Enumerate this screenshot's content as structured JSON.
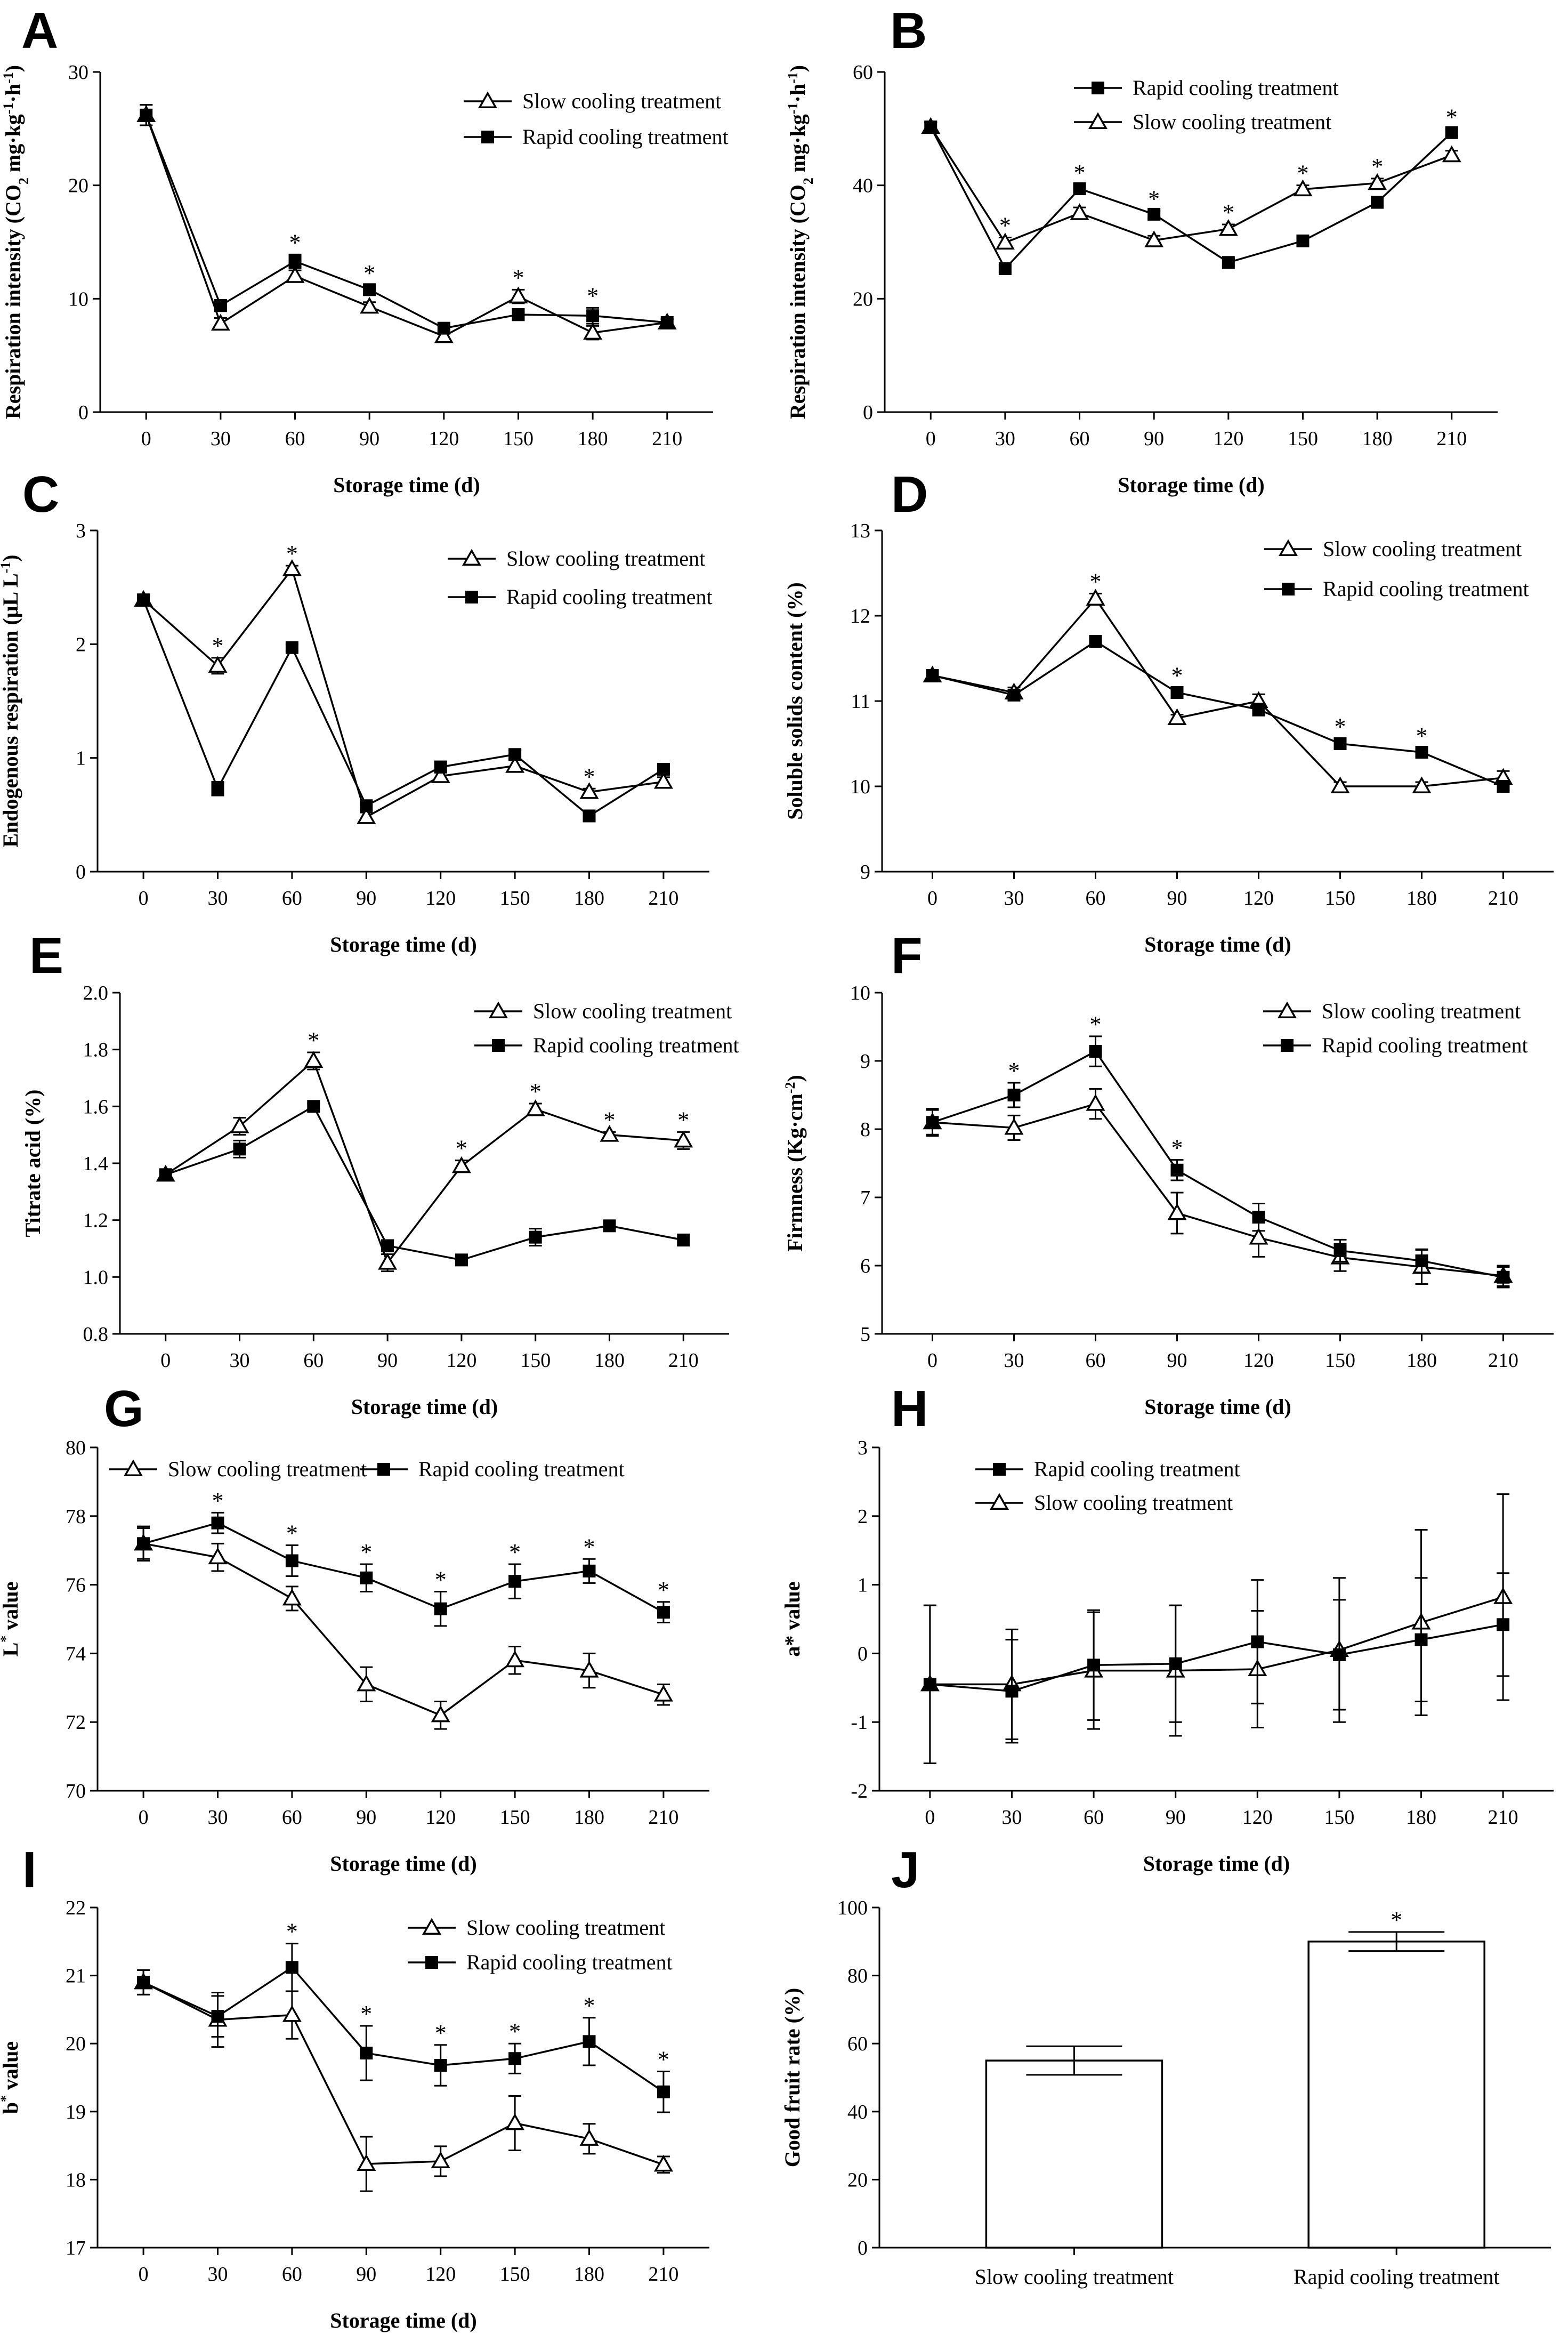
{
  "figure": {
    "panel_letters": [
      "A",
      "B",
      "C",
      "D",
      "E",
      "F",
      "G",
      "H",
      "I",
      "J"
    ]
  },
  "colors": {
    "axis": "#000000",
    "background": "#ffffff"
  },
  "markers": {
    "Slow cooling treatment": "open-triangle",
    "Rapid cooling treatment": "filled-square"
  },
  "chart_data": [
    {
      "id": "A",
      "type": "line",
      "letter": "A",
      "xlabel": "Storage time (d)",
      "ylabel": [
        {
          "t": "Respiration intensity (CO"
        },
        {
          "t": "2",
          "s": "sub"
        },
        {
          "t": " mg·kg"
        },
        {
          "t": "-1",
          "s": "sup"
        },
        {
          "t": "·h"
        },
        {
          "t": "-1",
          "s": "sup"
        },
        {
          "t": ")"
        }
      ],
      "x": [
        0,
        30,
        60,
        90,
        120,
        150,
        180,
        210
      ],
      "xticks": [
        "0",
        "30",
        "60",
        "90",
        "120",
        "150",
        "180",
        "210"
      ],
      "ylim": [
        0,
        30
      ],
      "yticks": [
        0,
        10,
        20,
        30
      ],
      "legend_order": [
        "Slow cooling treatment",
        "Rapid cooling treatment"
      ],
      "series": [
        {
          "name": "Slow cooling treatment",
          "values": [
            26.2,
            7.8,
            12.0,
            9.3,
            6.7,
            10.2,
            7.0,
            7.9
          ],
          "errors": [
            0.9,
            0.5,
            0.5,
            0.4,
            0.4,
            0.6,
            0.6,
            0.3
          ]
        },
        {
          "name": "Rapid cooling treatment",
          "values": [
            26.2,
            9.4,
            13.3,
            10.8,
            7.4,
            8.6,
            8.5,
            7.9
          ],
          "errors": [
            0.9,
            0.5,
            0.6,
            0.4,
            0.4,
            0.5,
            0.7,
            0.3
          ]
        }
      ],
      "significance_x": [
        60,
        90,
        150,
        180
      ],
      "significance_label": "*"
    },
    {
      "id": "B",
      "type": "line",
      "letter": "B",
      "xlabel": "Storage time (d)",
      "ylabel": [
        {
          "t": "Respiration intensity (CO"
        },
        {
          "t": "2",
          "s": "sub"
        },
        {
          "t": " mg·kg"
        },
        {
          "t": "-1",
          "s": "sup"
        },
        {
          "t": "·h"
        },
        {
          "t": "-1",
          "s": "sup"
        },
        {
          "t": ")"
        }
      ],
      "x": [
        0,
        30,
        60,
        90,
        120,
        150,
        180,
        210
      ],
      "xticks": [
        "0",
        "30",
        "60",
        "90",
        "120",
        "150",
        "180",
        "210"
      ],
      "ylim": [
        0,
        60
      ],
      "yticks": [
        0,
        20,
        40,
        60
      ],
      "legend_order": [
        "Rapid cooling treatment",
        "Slow cooling treatment"
      ],
      "series": [
        {
          "name": "Slow cooling treatment",
          "values": [
            50.3,
            29.9,
            35.1,
            30.3,
            32.3,
            39.3,
            40.4,
            45.3
          ],
          "errors": [
            0.8,
            0.9,
            1.0,
            0.8,
            0.8,
            0.7,
            0.8,
            0.8
          ]
        },
        {
          "name": "Rapid cooling treatment",
          "values": [
            50.3,
            25.3,
            39.4,
            34.9,
            26.4,
            30.2,
            37.0,
            49.3
          ],
          "errors": [
            0.8,
            0.6,
            0.7,
            0.6,
            0.6,
            0.6,
            0.6,
            0.6
          ]
        }
      ],
      "significance_x": [
        30,
        60,
        90,
        120,
        150,
        180,
        210
      ],
      "significance_label": "*"
    },
    {
      "id": "C",
      "type": "line",
      "letter": "C",
      "xlabel": "Storage time (d)",
      "ylabel": [
        {
          "t": "Endogenous respiration (μL L"
        },
        {
          "t": "-1",
          "s": "sup"
        },
        {
          "t": ")"
        }
      ],
      "x": [
        0,
        30,
        60,
        90,
        120,
        150,
        180,
        210
      ],
      "xticks": [
        "0",
        "30",
        "60",
        "90",
        "120",
        "150",
        "180",
        "210"
      ],
      "ylim": [
        0,
        3
      ],
      "yticks": [
        0,
        1,
        2,
        3
      ],
      "legend_order": [
        "Slow cooling treatment",
        "Rapid cooling treatment"
      ],
      "series": [
        {
          "name": "Slow cooling treatment",
          "values": [
            2.39,
            1.81,
            2.66,
            0.48,
            0.84,
            0.93,
            0.7,
            0.79
          ],
          "errors": [
            0.04,
            0.07,
            0.03,
            0.04,
            0.04,
            0.05,
            0.03,
            0.04
          ]
        },
        {
          "name": "Rapid cooling treatment",
          "values": [
            2.39,
            0.73,
            1.97,
            0.58,
            0.92,
            1.03,
            0.49,
            0.9
          ],
          "errors": [
            0.04,
            0.06,
            0.03,
            0.04,
            0.05,
            0.04,
            0.04,
            0.03
          ]
        }
      ],
      "significance_x": [
        30,
        60,
        180
      ],
      "significance_label": "*"
    },
    {
      "id": "D",
      "type": "line",
      "letter": "D",
      "xlabel": "Storage time (d)",
      "ylabel": [
        {
          "t": "Soluble solids content (%)"
        }
      ],
      "x": [
        0,
        30,
        60,
        90,
        120,
        150,
        180,
        210
      ],
      "xticks": [
        "0",
        "30",
        "60",
        "90",
        "120",
        "150",
        "180",
        "210"
      ],
      "ylim": [
        9,
        13
      ],
      "yticks": [
        9,
        10,
        11,
        12,
        13
      ],
      "legend_order": [
        "Slow cooling treatment",
        "Rapid cooling treatment"
      ],
      "series": [
        {
          "name": "Slow cooling treatment",
          "values": [
            11.3,
            11.1,
            12.2,
            10.8,
            11.0,
            10.0,
            10.0,
            10.1
          ],
          "errors": [
            0.03,
            0.06,
            0.06,
            0.04,
            0.08,
            0.05,
            0.05,
            0.08
          ]
        },
        {
          "name": "Rapid cooling treatment",
          "values": [
            11.3,
            11.07,
            11.7,
            11.1,
            10.9,
            10.5,
            10.4,
            10.0
          ],
          "errors": [
            0.03,
            0.05,
            0.03,
            0.06,
            0.07,
            0.06,
            0.05,
            0.05
          ]
        }
      ],
      "significance_x": [
        60,
        90,
        150,
        180
      ],
      "significance_label": "*"
    },
    {
      "id": "E",
      "type": "line",
      "letter": "E",
      "xlabel": "Storage time (d)",
      "ylabel": [
        {
          "t": "Titrate acid (%)"
        }
      ],
      "x": [
        0,
        30,
        60,
        90,
        120,
        150,
        180,
        210
      ],
      "xticks": [
        "0",
        "30",
        "60",
        "90",
        "120",
        "150",
        "180",
        "210"
      ],
      "ylim": [
        0.8,
        2.0
      ],
      "yticks": [
        0.8,
        1.0,
        1.2,
        1.4,
        1.6,
        1.8,
        2.0
      ],
      "ytick_decimals": 1,
      "legend_order": [
        "Slow cooling treatment",
        "Rapid cooling treatment"
      ],
      "series": [
        {
          "name": "Slow cooling treatment",
          "values": [
            1.36,
            1.53,
            1.76,
            1.05,
            1.39,
            1.59,
            1.5,
            1.48
          ],
          "errors": [
            0.01,
            0.03,
            0.03,
            0.03,
            0.02,
            0.02,
            0.01,
            0.03
          ]
        },
        {
          "name": "Rapid cooling treatment",
          "values": [
            1.36,
            1.45,
            1.6,
            1.11,
            1.06,
            1.14,
            1.18,
            1.13
          ],
          "errors": [
            0.01,
            0.03,
            0.01,
            0.02,
            0.01,
            0.03,
            0.01,
            0.02
          ]
        }
      ],
      "significance_x": [
        60,
        120,
        150,
        180,
        210
      ],
      "significance_label": "*"
    },
    {
      "id": "F",
      "type": "line",
      "letter": "F",
      "xlabel": "Storage time (d)",
      "ylabel": [
        {
          "t": "Firmness (Kg·cm"
        },
        {
          "t": "-2",
          "s": "sup"
        },
        {
          "t": ")"
        }
      ],
      "x": [
        0,
        30,
        60,
        90,
        120,
        150,
        180,
        210
      ],
      "xticks": [
        "0",
        "30",
        "60",
        "90",
        "120",
        "150",
        "180",
        "210"
      ],
      "ylim": [
        5,
        10
      ],
      "yticks": [
        5,
        6,
        7,
        8,
        9,
        10
      ],
      "legend_order": [
        "Slow cooling treatment",
        "Rapid cooling treatment"
      ],
      "series": [
        {
          "name": "Slow cooling treatment",
          "values": [
            8.1,
            8.02,
            8.37,
            6.77,
            6.41,
            6.12,
            5.98,
            5.85
          ],
          "errors": [
            0.18,
            0.18,
            0.22,
            0.3,
            0.28,
            0.2,
            0.25,
            0.15
          ]
        },
        {
          "name": "Rapid cooling treatment",
          "values": [
            8.1,
            8.5,
            9.14,
            7.4,
            6.71,
            6.22,
            6.07,
            5.83
          ],
          "errors": [
            0.2,
            0.18,
            0.22,
            0.15,
            0.2,
            0.16,
            0.17,
            0.15
          ]
        }
      ],
      "significance_x": [
        30,
        60,
        90
      ],
      "significance_label": "*"
    },
    {
      "id": "G",
      "type": "line",
      "letter": "G",
      "xlabel": "Storage time (d)",
      "ylabel": [
        {
          "t": "L"
        },
        {
          "t": "*",
          "s": "sup"
        },
        {
          "t": " value"
        }
      ],
      "x": [
        0,
        30,
        60,
        90,
        120,
        150,
        180,
        210
      ],
      "xticks": [
        "0",
        "30",
        "60",
        "90",
        "120",
        "150",
        "180",
        "210"
      ],
      "ylim": [
        70,
        80
      ],
      "yticks": [
        70,
        72,
        74,
        76,
        78,
        80
      ],
      "legend_order": [
        "Slow cooling treatment",
        "Rapid cooling treatment"
      ],
      "legend_layout": "row",
      "series": [
        {
          "name": "Slow cooling treatment",
          "values": [
            77.2,
            76.8,
            75.6,
            73.1,
            72.2,
            73.8,
            73.5,
            72.8
          ],
          "errors": [
            0.5,
            0.4,
            0.35,
            0.5,
            0.4,
            0.4,
            0.5,
            0.3
          ]
        },
        {
          "name": "Rapid cooling treatment",
          "values": [
            77.2,
            77.8,
            76.7,
            76.2,
            75.3,
            76.1,
            76.4,
            75.2
          ],
          "errors": [
            0.45,
            0.3,
            0.45,
            0.4,
            0.5,
            0.5,
            0.35,
            0.3
          ]
        }
      ],
      "significance_x": [
        30,
        60,
        90,
        120,
        150,
        180,
        210
      ],
      "significance_label": "*"
    },
    {
      "id": "H",
      "type": "line",
      "letter": "H",
      "xlabel": "Storage time (d)",
      "ylabel": [
        {
          "t": "a* value"
        }
      ],
      "x": [
        0,
        30,
        60,
        90,
        120,
        150,
        180,
        210
      ],
      "xticks": [
        "0",
        "30",
        "60",
        "90",
        "120",
        "150",
        "180",
        "210"
      ],
      "ylim": [
        -2,
        3
      ],
      "yticks": [
        -2,
        -1,
        0,
        1,
        2,
        3
      ],
      "legend_order": [
        "Rapid cooling treatment",
        "Slow cooling treatment"
      ],
      "series": [
        {
          "name": "Slow cooling treatment",
          "values": [
            -0.45,
            -0.45,
            -0.25,
            -0.25,
            -0.23,
            0.05,
            0.45,
            0.82
          ],
          "errors": [
            1.15,
            0.8,
            0.85,
            0.95,
            0.85,
            1.05,
            1.35,
            1.5
          ]
        },
        {
          "name": "Rapid cooling treatment",
          "values": [
            -0.45,
            -0.55,
            -0.17,
            -0.15,
            0.17,
            -0.02,
            0.2,
            0.42
          ],
          "errors": [
            1.15,
            0.75,
            0.8,
            0.85,
            0.9,
            0.8,
            0.9,
            0.75
          ]
        }
      ],
      "significance_x": [],
      "significance_label": "*"
    },
    {
      "id": "I",
      "type": "line",
      "letter": "I",
      "xlabel": "Storage time (d)",
      "ylabel": [
        {
          "t": "b"
        },
        {
          "t": "*",
          "s": "sup"
        },
        {
          "t": " value"
        }
      ],
      "x": [
        0,
        30,
        60,
        90,
        120,
        150,
        180,
        210
      ],
      "xticks": [
        "0",
        "30",
        "60",
        "90",
        "120",
        "150",
        "180",
        "210"
      ],
      "ylim": [
        17,
        22
      ],
      "yticks": [
        17,
        18,
        19,
        20,
        21,
        22
      ],
      "legend_order": [
        "Slow cooling treatment",
        "Rapid cooling treatment"
      ],
      "series": [
        {
          "name": "Slow cooling treatment",
          "values": [
            20.9,
            20.35,
            20.42,
            18.23,
            18.27,
            18.83,
            18.6,
            18.22
          ],
          "errors": [
            0.18,
            0.4,
            0.35,
            0.4,
            0.22,
            0.4,
            0.22,
            0.12
          ]
        },
        {
          "name": "Rapid cooling treatment",
          "values": [
            20.9,
            20.4,
            21.12,
            19.86,
            19.68,
            19.78,
            20.03,
            19.29
          ],
          "errors": [
            0.18,
            0.3,
            0.35,
            0.4,
            0.3,
            0.22,
            0.35,
            0.3
          ]
        }
      ],
      "significance_x": [
        60,
        90,
        120,
        150,
        180,
        210
      ],
      "significance_label": "*"
    },
    {
      "id": "J",
      "type": "bar",
      "letter": "J",
      "xlabel": "",
      "ylabel": [
        {
          "t": "Good fruit rate (%)"
        }
      ],
      "categories": [
        "Slow cooling treatment",
        "Rapid cooling treatment"
      ],
      "values": [
        55,
        90
      ],
      "errors": [
        4.2,
        2.8
      ],
      "ylim": [
        0,
        100
      ],
      "yticks": [
        0,
        20,
        40,
        60,
        80,
        100
      ],
      "significance_index": [
        1
      ],
      "significance_label": "*"
    }
  ]
}
